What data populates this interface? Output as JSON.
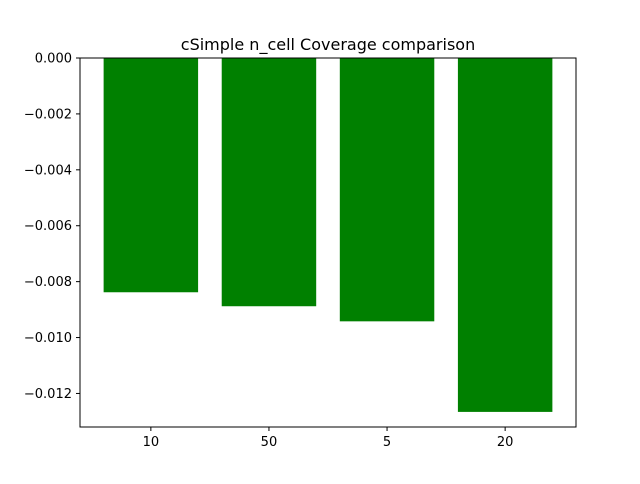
{
  "chart_data": {
    "type": "bar",
    "title": "cSimple n_cell Coverage comparison",
    "xlabel": "",
    "ylabel": "",
    "categories": [
      "10",
      "50",
      "5",
      "20"
    ],
    "values": [
      -0.00838,
      -0.00888,
      -0.00942,
      -0.01266
    ],
    "ylim": [
      -0.0132,
      0.0
    ],
    "yticks": [
      0.0,
      -0.002,
      -0.004,
      -0.006,
      -0.008,
      -0.01,
      -0.012
    ],
    "ytick_labels": [
      "0.000",
      "−0.002",
      "−0.004",
      "−0.006",
      "−0.008",
      "−0.010",
      "−0.012"
    ],
    "bar_color": "#008000",
    "grid": false,
    "legend": "none"
  }
}
